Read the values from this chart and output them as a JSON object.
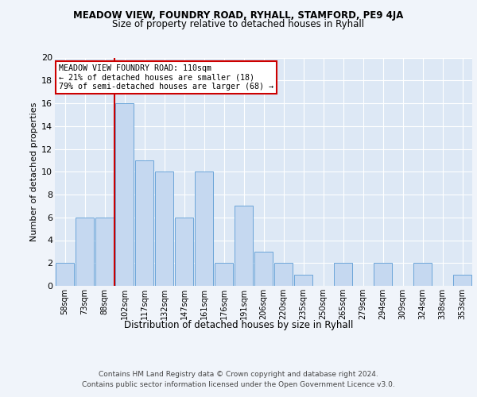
{
  "title1": "MEADOW VIEW, FOUNDRY ROAD, RYHALL, STAMFORD, PE9 4JA",
  "title2": "Size of property relative to detached houses in Ryhall",
  "xlabel": "Distribution of detached houses by size in Ryhall",
  "ylabel": "Number of detached properties",
  "categories": [
    "58sqm",
    "73sqm",
    "88sqm",
    "102sqm",
    "117sqm",
    "132sqm",
    "147sqm",
    "161sqm",
    "176sqm",
    "191sqm",
    "206sqm",
    "220sqm",
    "235sqm",
    "250sqm",
    "265sqm",
    "279sqm",
    "294sqm",
    "309sqm",
    "324sqm",
    "338sqm",
    "353sqm"
  ],
  "values": [
    2,
    6,
    6,
    16,
    11,
    10,
    6,
    10,
    2,
    7,
    3,
    2,
    1,
    0,
    2,
    0,
    2,
    0,
    2,
    0,
    1
  ],
  "bar_color": "#c5d8f0",
  "bar_edge_color": "#5b9bd5",
  "red_line_index": 3,
  "annotation_line1": "MEADOW VIEW FOUNDRY ROAD: 110sqm",
  "annotation_line2": "← 21% of detached houses are smaller (18)",
  "annotation_line3": "79% of semi-detached houses are larger (68) →",
  "annotation_box_color": "#ffffff",
  "annotation_box_edge": "#cc0000",
  "red_line_color": "#cc0000",
  "ylim": [
    0,
    20
  ],
  "yticks": [
    0,
    2,
    4,
    6,
    8,
    10,
    12,
    14,
    16,
    18,
    20
  ],
  "footer1": "Contains HM Land Registry data © Crown copyright and database right 2024.",
  "footer2": "Contains public sector information licensed under the Open Government Licence v3.0.",
  "bg_color": "#dde8f5",
  "fig_color": "#f0f4fa",
  "grid_color": "#ffffff"
}
